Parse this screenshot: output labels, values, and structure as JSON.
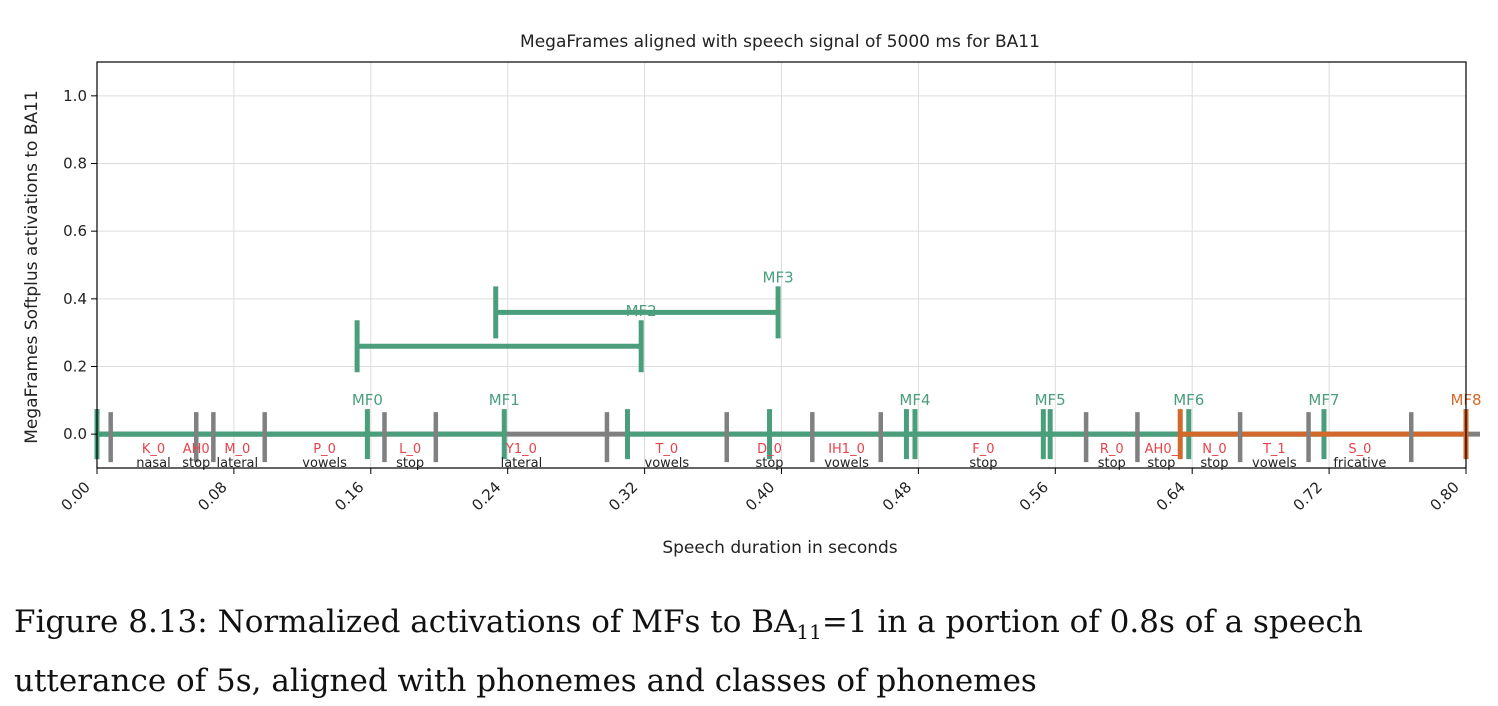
{
  "chart_data": {
    "type": "line",
    "title": "MegaFrames aligned with speech signal of 5000 ms for BA11",
    "xlabel": "Speech duration in seconds",
    "ylabel": "MegaFrames Softplus activations to BA11",
    "xlim": [
      0.0,
      0.8
    ],
    "ylim": [
      -0.1,
      1.1
    ],
    "xticks": [
      0.0,
      0.08,
      0.16,
      0.24,
      0.32,
      0.4,
      0.48,
      0.56,
      0.64,
      0.72,
      0.8
    ],
    "xtick_labels": [
      "0.00",
      "0.08",
      "0.16",
      "0.24",
      "0.32",
      "0.40",
      "0.48",
      "0.56",
      "0.64",
      "0.72",
      "0.80"
    ],
    "yticks": [
      0.0,
      0.2,
      0.4,
      0.6,
      0.8,
      1.0
    ],
    "ytick_labels": [
      "0.0",
      "0.2",
      "0.4",
      "0.6",
      "0.8",
      "1.0"
    ],
    "grid": true,
    "colors": {
      "green": "#4a9e7c",
      "orange": "#d2692a",
      "gray": "#808080",
      "phoneme": "#e8414a"
    },
    "megaframes": [
      {
        "name": "MF0",
        "start": 0.0,
        "end": 0.158,
        "y": 0.0,
        "color": "green"
      },
      {
        "name": "MF1",
        "start": 0.0,
        "end": 0.238,
        "y": 0.0,
        "color": "green"
      },
      {
        "name": "MF2",
        "start": 0.152,
        "end": 0.318,
        "y": 0.26,
        "color": "green"
      },
      {
        "name": "MF3",
        "start": 0.233,
        "end": 0.398,
        "y": 0.36,
        "color": "green"
      },
      {
        "name": "MF4",
        "start": 0.31,
        "end": 0.478,
        "y": 0.0,
        "color": "green"
      },
      {
        "name": "MF5",
        "start": 0.393,
        "end": 0.557,
        "y": 0.0,
        "color": "green"
      },
      {
        "name": "MF6",
        "start": 0.473,
        "end": 0.638,
        "y": 0.0,
        "color": "green"
      },
      {
        "name": "MF7",
        "start": 0.553,
        "end": 0.717,
        "y": 0.0,
        "color": "green"
      },
      {
        "name": "MF8",
        "start": 0.633,
        "end": 0.8,
        "y": 0.0,
        "color": "orange"
      }
    ],
    "phoneme_boundaries": [
      0.008,
      0.058,
      0.068,
      0.098,
      0.168,
      0.198,
      0.298,
      0.368,
      0.418,
      0.458,
      0.578,
      0.608,
      0.668,
      0.708,
      0.768
    ],
    "phonemes": [
      {
        "label": "K_0",
        "class": "nasal",
        "x": 0.033
      },
      {
        "label": "AH0",
        "class": "stop",
        "x": 0.058
      },
      {
        "label": "M_0",
        "class": "lateral",
        "x": 0.082
      },
      {
        "label": "P_0",
        "class": "vowels",
        "x": 0.133
      },
      {
        "label": "L_0",
        "class": "stop",
        "x": 0.183
      },
      {
        "label": "Y1_0",
        "class": "lateral",
        "x": 0.248
      },
      {
        "label": "T_0",
        "class": "vowels",
        "x": 0.333
      },
      {
        "label": "D_0",
        "class": "stop",
        "x": 0.393
      },
      {
        "label": "IH1_0",
        "class": "vowels",
        "x": 0.438
      },
      {
        "label": "F_0",
        "class": "stop",
        "x": 0.518
      },
      {
        "label": "R_0",
        "class": "stop",
        "x": 0.593
      },
      {
        "label": "AH0_",
        "class": "stop",
        "x": 0.622
      },
      {
        "label": "N_0",
        "class": "stop",
        "x": 0.653
      },
      {
        "label": "T_1",
        "class": "vowels",
        "x": 0.688
      },
      {
        "label": "S_0",
        "class": "fricative",
        "x": 0.738
      }
    ]
  },
  "caption": {
    "prefix": "Figure 8.13:  Normalized activations of MFs to BA",
    "subscript": "11",
    "suffix": "=1 in a portion of 0.8s of a speech utterance of 5s, aligned with phonemes and classes of phonemes"
  }
}
